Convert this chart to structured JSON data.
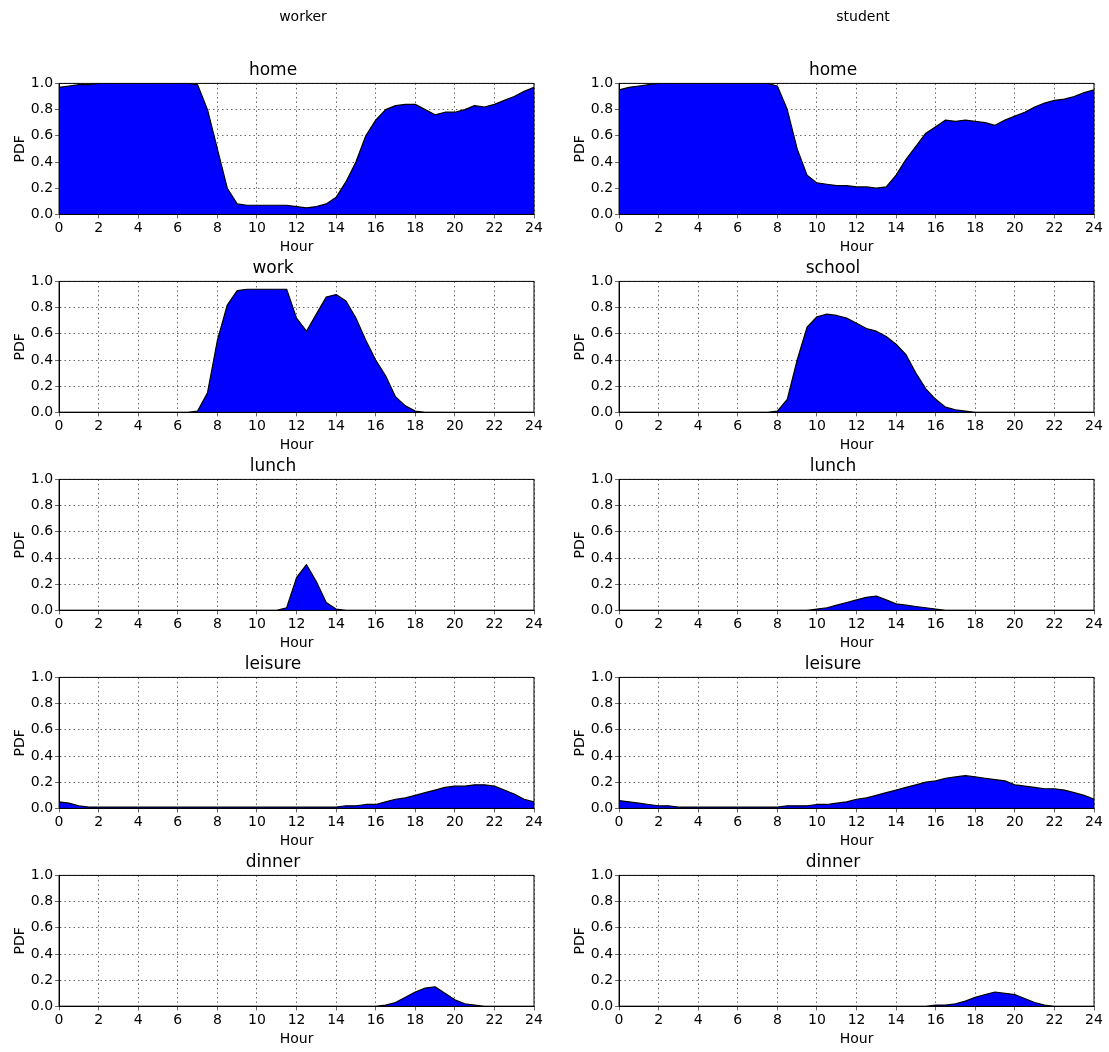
{
  "chart_data": [
    {
      "type": "area",
      "subtitle": "worker",
      "title": "home",
      "xlabel": "Hour",
      "ylabel": "PDF",
      "color": "#0000ff",
      "xlim": [
        0,
        24
      ],
      "ylim": [
        0,
        1
      ],
      "xticks": [
        0,
        2,
        4,
        6,
        8,
        10,
        12,
        14,
        16,
        18,
        20,
        22,
        24
      ],
      "yticks": [
        {
          "value": 0,
          "label": "0.0"
        },
        {
          "value": 0.2,
          "label": "0.2"
        },
        {
          "value": 0.4,
          "label": "0.4"
        },
        {
          "value": 0.6,
          "label": "0.6"
        },
        {
          "value": 0.8,
          "label": "0.8"
        },
        {
          "value": 1,
          "label": "1.0"
        }
      ],
      "grid": true,
      "x": [
        0,
        0.5,
        1,
        1.5,
        2,
        2.5,
        3,
        3.5,
        4,
        4.5,
        5,
        5.5,
        6,
        6.5,
        7,
        7.5,
        8,
        8.5,
        9,
        9.5,
        10,
        10.5,
        11,
        11.5,
        12,
        12.5,
        13,
        13.5,
        14,
        14.5,
        15,
        15.5,
        16,
        16.5,
        17,
        17.5,
        18,
        18.5,
        19,
        19.5,
        20,
        20.5,
        21,
        21.5,
        22,
        22.5,
        23,
        23.5,
        24
      ],
      "values": [
        0.97,
        0.98,
        0.99,
        0.99,
        1,
        1,
        1,
        1,
        1,
        1,
        1,
        1,
        1,
        1,
        0.99,
        0.8,
        0.5,
        0.2,
        0.08,
        0.07,
        0.07,
        0.07,
        0.07,
        0.07,
        0.06,
        0.05,
        0.06,
        0.08,
        0.13,
        0.25,
        0.4,
        0.6,
        0.72,
        0.8,
        0.83,
        0.84,
        0.84,
        0.8,
        0.76,
        0.78,
        0.78,
        0.8,
        0.83,
        0.82,
        0.84,
        0.87,
        0.9,
        0.94,
        0.97
      ]
    },
    {
      "type": "area",
      "subtitle": "student",
      "title": "home",
      "xlabel": "Hour",
      "ylabel": "PDF",
      "color": "#0000ff",
      "xlim": [
        0,
        24
      ],
      "ylim": [
        0,
        1
      ],
      "xticks": [
        0,
        2,
        4,
        6,
        8,
        10,
        12,
        14,
        16,
        18,
        20,
        22,
        24
      ],
      "yticks": [
        {
          "value": 0,
          "label": "0.0"
        },
        {
          "value": 0.2,
          "label": "0.2"
        },
        {
          "value": 0.4,
          "label": "0.4"
        },
        {
          "value": 0.6,
          "label": "0.6"
        },
        {
          "value": 0.8,
          "label": "0.8"
        },
        {
          "value": 1,
          "label": "1.0"
        }
      ],
      "grid": true,
      "x": [
        0,
        0.5,
        1,
        1.5,
        2,
        2.5,
        3,
        3.5,
        4,
        4.5,
        5,
        5.5,
        6,
        6.5,
        7,
        7.5,
        8,
        8.5,
        9,
        9.5,
        10,
        10.5,
        11,
        11.5,
        12,
        12.5,
        13,
        13.5,
        14,
        14.5,
        15,
        15.5,
        16,
        16.5,
        17,
        17.5,
        18,
        18.5,
        19,
        19.5,
        20,
        20.5,
        21,
        21.5,
        22,
        22.5,
        23,
        23.5,
        24
      ],
      "values": [
        0.95,
        0.97,
        0.98,
        0.99,
        1,
        1,
        1,
        1,
        1,
        1,
        1,
        1,
        1,
        1,
        1,
        1,
        0.98,
        0.8,
        0.5,
        0.3,
        0.24,
        0.23,
        0.22,
        0.22,
        0.21,
        0.21,
        0.2,
        0.21,
        0.3,
        0.42,
        0.52,
        0.62,
        0.67,
        0.72,
        0.71,
        0.72,
        0.71,
        0.7,
        0.68,
        0.72,
        0.75,
        0.78,
        0.82,
        0.85,
        0.87,
        0.88,
        0.9,
        0.93,
        0.95
      ]
    },
    {
      "type": "area",
      "title": "work",
      "xlabel": "Hour",
      "ylabel": "PDF",
      "color": "#0000ff",
      "xlim": [
        0,
        24
      ],
      "ylim": [
        0,
        1
      ],
      "xticks": [
        0,
        2,
        4,
        6,
        8,
        10,
        12,
        14,
        16,
        18,
        20,
        22,
        24
      ],
      "yticks": [
        {
          "value": 0,
          "label": "0.0"
        },
        {
          "value": 0.2,
          "label": "0.2"
        },
        {
          "value": 0.4,
          "label": "0.4"
        },
        {
          "value": 0.6,
          "label": "0.6"
        },
        {
          "value": 0.8,
          "label": "0.8"
        },
        {
          "value": 1,
          "label": "1.0"
        }
      ],
      "grid": true,
      "x": [
        0,
        0.5,
        1,
        1.5,
        2,
        2.5,
        3,
        3.5,
        4,
        4.5,
        5,
        5.5,
        6,
        6.5,
        7,
        7.5,
        8,
        8.5,
        9,
        9.5,
        10,
        10.5,
        11,
        11.5,
        12,
        12.5,
        13,
        13.5,
        14,
        14.5,
        15,
        15.5,
        16,
        16.5,
        17,
        17.5,
        18,
        18.5,
        19,
        19.5,
        20,
        20.5,
        21,
        21.5,
        22,
        22.5,
        23,
        23.5,
        24
      ],
      "values": [
        0,
        0,
        0,
        0,
        0,
        0,
        0,
        0,
        0,
        0,
        0,
        0,
        0,
        0,
        0.01,
        0.15,
        0.55,
        0.82,
        0.93,
        0.94,
        0.94,
        0.94,
        0.94,
        0.94,
        0.72,
        0.62,
        0.75,
        0.88,
        0.9,
        0.85,
        0.72,
        0.55,
        0.4,
        0.28,
        0.12,
        0.05,
        0.01,
        0,
        0,
        0,
        0,
        0,
        0,
        0,
        0,
        0,
        0,
        0,
        0
      ]
    },
    {
      "type": "area",
      "title": "school",
      "xlabel": "Hour",
      "ylabel": "PDF",
      "color": "#0000ff",
      "xlim": [
        0,
        24
      ],
      "ylim": [
        0,
        1
      ],
      "xticks": [
        0,
        2,
        4,
        6,
        8,
        10,
        12,
        14,
        16,
        18,
        20,
        22,
        24
      ],
      "yticks": [
        {
          "value": 0,
          "label": "0.0"
        },
        {
          "value": 0.2,
          "label": "0.2"
        },
        {
          "value": 0.4,
          "label": "0.4"
        },
        {
          "value": 0.6,
          "label": "0.6"
        },
        {
          "value": 0.8,
          "label": "0.8"
        },
        {
          "value": 1,
          "label": "1.0"
        }
      ],
      "grid": true,
      "x": [
        0,
        0.5,
        1,
        1.5,
        2,
        2.5,
        3,
        3.5,
        4,
        4.5,
        5,
        5.5,
        6,
        6.5,
        7,
        7.5,
        8,
        8.5,
        9,
        9.5,
        10,
        10.5,
        11,
        11.5,
        12,
        12.5,
        13,
        13.5,
        14,
        14.5,
        15,
        15.5,
        16,
        16.5,
        17,
        17.5,
        18,
        18.5,
        19,
        19.5,
        20,
        20.5,
        21,
        21.5,
        22,
        22.5,
        23,
        23.5,
        24
      ],
      "values": [
        0,
        0,
        0,
        0,
        0,
        0,
        0,
        0,
        0,
        0,
        0,
        0,
        0,
        0,
        0,
        0,
        0.01,
        0.1,
        0.4,
        0.65,
        0.73,
        0.75,
        0.74,
        0.72,
        0.68,
        0.64,
        0.62,
        0.58,
        0.52,
        0.44,
        0.3,
        0.18,
        0.1,
        0.04,
        0.02,
        0.01,
        0,
        0,
        0,
        0,
        0,
        0,
        0,
        0,
        0,
        0,
        0,
        0,
        0
      ]
    },
    {
      "type": "area",
      "title": "lunch",
      "xlabel": "Hour",
      "ylabel": "PDF",
      "color": "#0000ff",
      "xlim": [
        0,
        24
      ],
      "ylim": [
        0,
        1
      ],
      "xticks": [
        0,
        2,
        4,
        6,
        8,
        10,
        12,
        14,
        16,
        18,
        20,
        22,
        24
      ],
      "yticks": [
        {
          "value": 0,
          "label": "0.0"
        },
        {
          "value": 0.2,
          "label": "0.2"
        },
        {
          "value": 0.4,
          "label": "0.4"
        },
        {
          "value": 0.6,
          "label": "0.6"
        },
        {
          "value": 0.8,
          "label": "0.8"
        },
        {
          "value": 1,
          "label": "1.0"
        }
      ],
      "grid": true,
      "x": [
        0,
        0.5,
        1,
        1.5,
        2,
        2.5,
        3,
        3.5,
        4,
        4.5,
        5,
        5.5,
        6,
        6.5,
        7,
        7.5,
        8,
        8.5,
        9,
        9.5,
        10,
        10.5,
        11,
        11.5,
        12,
        12.5,
        13,
        13.5,
        14,
        14.5,
        15,
        15.5,
        16,
        16.5,
        17,
        17.5,
        18,
        18.5,
        19,
        19.5,
        20,
        20.5,
        21,
        21.5,
        22,
        22.5,
        23,
        23.5,
        24
      ],
      "values": [
        0,
        0,
        0,
        0,
        0,
        0,
        0,
        0,
        0,
        0,
        0,
        0,
        0,
        0,
        0,
        0,
        0,
        0,
        0,
        0,
        0,
        0,
        0,
        0.02,
        0.25,
        0.35,
        0.22,
        0.06,
        0.01,
        0,
        0,
        0,
        0,
        0,
        0,
        0,
        0,
        0,
        0,
        0,
        0,
        0,
        0,
        0,
        0,
        0,
        0,
        0,
        0
      ]
    },
    {
      "type": "area",
      "title": "lunch",
      "xlabel": "Hour",
      "ylabel": "PDF",
      "color": "#0000ff",
      "xlim": [
        0,
        24
      ],
      "ylim": [
        0,
        1
      ],
      "xticks": [
        0,
        2,
        4,
        6,
        8,
        10,
        12,
        14,
        16,
        18,
        20,
        22,
        24
      ],
      "yticks": [
        {
          "value": 0,
          "label": "0.0"
        },
        {
          "value": 0.2,
          "label": "0.2"
        },
        {
          "value": 0.4,
          "label": "0.4"
        },
        {
          "value": 0.6,
          "label": "0.6"
        },
        {
          "value": 0.8,
          "label": "0.8"
        },
        {
          "value": 1,
          "label": "1.0"
        }
      ],
      "grid": true,
      "x": [
        0,
        0.5,
        1,
        1.5,
        2,
        2.5,
        3,
        3.5,
        4,
        4.5,
        5,
        5.5,
        6,
        6.5,
        7,
        7.5,
        8,
        8.5,
        9,
        9.5,
        10,
        10.5,
        11,
        11.5,
        12,
        12.5,
        13,
        13.5,
        14,
        14.5,
        15,
        15.5,
        16,
        16.5,
        17,
        17.5,
        18,
        18.5,
        19,
        19.5,
        20,
        20.5,
        21,
        21.5,
        22,
        22.5,
        23,
        23.5,
        24
      ],
      "values": [
        0,
        0,
        0,
        0,
        0,
        0,
        0,
        0,
        0,
        0,
        0,
        0,
        0,
        0,
        0,
        0,
        0,
        0,
        0,
        0,
        0.01,
        0.02,
        0.04,
        0.06,
        0.08,
        0.1,
        0.11,
        0.08,
        0.05,
        0.04,
        0.03,
        0.02,
        0.01,
        0,
        0,
        0,
        0,
        0,
        0,
        0,
        0,
        0,
        0,
        0,
        0,
        0,
        0,
        0,
        0
      ]
    },
    {
      "type": "area",
      "title": "leisure",
      "xlabel": "Hour",
      "ylabel": "PDF",
      "color": "#0000ff",
      "xlim": [
        0,
        24
      ],
      "ylim": [
        0,
        1
      ],
      "xticks": [
        0,
        2,
        4,
        6,
        8,
        10,
        12,
        14,
        16,
        18,
        20,
        22,
        24
      ],
      "yticks": [
        {
          "value": 0,
          "label": "0.0"
        },
        {
          "value": 0.2,
          "label": "0.2"
        },
        {
          "value": 0.4,
          "label": "0.4"
        },
        {
          "value": 0.6,
          "label": "0.6"
        },
        {
          "value": 0.8,
          "label": "0.8"
        },
        {
          "value": 1,
          "label": "1.0"
        }
      ],
      "grid": true,
      "x": [
        0,
        0.5,
        1,
        1.5,
        2,
        2.5,
        3,
        3.5,
        4,
        4.5,
        5,
        5.5,
        6,
        6.5,
        7,
        7.5,
        8,
        8.5,
        9,
        9.5,
        10,
        10.5,
        11,
        11.5,
        12,
        12.5,
        13,
        13.5,
        14,
        14.5,
        15,
        15.5,
        16,
        16.5,
        17,
        17.5,
        18,
        18.5,
        19,
        19.5,
        20,
        20.5,
        21,
        21.5,
        22,
        22.5,
        23,
        23.5,
        24
      ],
      "values": [
        0.05,
        0.04,
        0.02,
        0.01,
        0.01,
        0.01,
        0.01,
        0.01,
        0.01,
        0.01,
        0.01,
        0.01,
        0.01,
        0.01,
        0.01,
        0.01,
        0.01,
        0.01,
        0.01,
        0.01,
        0.01,
        0.01,
        0.01,
        0.01,
        0.01,
        0.01,
        0.01,
        0.01,
        0.01,
        0.02,
        0.02,
        0.03,
        0.03,
        0.05,
        0.07,
        0.08,
        0.1,
        0.12,
        0.14,
        0.16,
        0.17,
        0.17,
        0.18,
        0.18,
        0.17,
        0.14,
        0.11,
        0.07,
        0.05
      ]
    },
    {
      "type": "area",
      "title": "leisure",
      "xlabel": "Hour",
      "ylabel": "PDF",
      "color": "#0000ff",
      "xlim": [
        0,
        24
      ],
      "ylim": [
        0,
        1
      ],
      "xticks": [
        0,
        2,
        4,
        6,
        8,
        10,
        12,
        14,
        16,
        18,
        20,
        22,
        24
      ],
      "yticks": [
        {
          "value": 0,
          "label": "0.0"
        },
        {
          "value": 0.2,
          "label": "0.2"
        },
        {
          "value": 0.4,
          "label": "0.4"
        },
        {
          "value": 0.6,
          "label": "0.6"
        },
        {
          "value": 0.8,
          "label": "0.8"
        },
        {
          "value": 1,
          "label": "1.0"
        }
      ],
      "grid": true,
      "x": [
        0,
        0.5,
        1,
        1.5,
        2,
        2.5,
        3,
        3.5,
        4,
        4.5,
        5,
        5.5,
        6,
        6.5,
        7,
        7.5,
        8,
        8.5,
        9,
        9.5,
        10,
        10.5,
        11,
        11.5,
        12,
        12.5,
        13,
        13.5,
        14,
        14.5,
        15,
        15.5,
        16,
        16.5,
        17,
        17.5,
        18,
        18.5,
        19,
        19.5,
        20,
        20.5,
        21,
        21.5,
        22,
        22.5,
        23,
        23.5,
        24
      ],
      "values": [
        0.06,
        0.05,
        0.04,
        0.03,
        0.02,
        0.02,
        0.01,
        0.01,
        0.01,
        0.01,
        0.01,
        0.01,
        0.01,
        0.01,
        0.01,
        0.01,
        0.01,
        0.02,
        0.02,
        0.02,
        0.03,
        0.03,
        0.04,
        0.05,
        0.07,
        0.08,
        0.1,
        0.12,
        0.14,
        0.16,
        0.18,
        0.2,
        0.21,
        0.23,
        0.24,
        0.25,
        0.24,
        0.23,
        0.22,
        0.21,
        0.18,
        0.17,
        0.16,
        0.15,
        0.15,
        0.14,
        0.12,
        0.1,
        0.07
      ]
    },
    {
      "type": "area",
      "title": "dinner",
      "xlabel": "Hour",
      "ylabel": "PDF",
      "color": "#0000ff",
      "xlim": [
        0,
        24
      ],
      "ylim": [
        0,
        1
      ],
      "xticks": [
        0,
        2,
        4,
        6,
        8,
        10,
        12,
        14,
        16,
        18,
        20,
        22,
        24
      ],
      "yticks": [
        {
          "value": 0,
          "label": "0.0"
        },
        {
          "value": 0.2,
          "label": "0.2"
        },
        {
          "value": 0.4,
          "label": "0.4"
        },
        {
          "value": 0.6,
          "label": "0.6"
        },
        {
          "value": 0.8,
          "label": "0.8"
        },
        {
          "value": 1,
          "label": "1.0"
        }
      ],
      "grid": true,
      "x": [
        0,
        0.5,
        1,
        1.5,
        2,
        2.5,
        3,
        3.5,
        4,
        4.5,
        5,
        5.5,
        6,
        6.5,
        7,
        7.5,
        8,
        8.5,
        9,
        9.5,
        10,
        10.5,
        11,
        11.5,
        12,
        12.5,
        13,
        13.5,
        14,
        14.5,
        15,
        15.5,
        16,
        16.5,
        17,
        17.5,
        18,
        18.5,
        19,
        19.5,
        20,
        20.5,
        21,
        21.5,
        22,
        22.5,
        23,
        23.5,
        24
      ],
      "values": [
        0,
        0,
        0,
        0,
        0,
        0,
        0,
        0,
        0,
        0,
        0,
        0,
        0,
        0,
        0,
        0,
        0,
        0,
        0,
        0,
        0,
        0,
        0,
        0,
        0,
        0,
        0,
        0,
        0,
        0,
        0,
        0,
        0,
        0.01,
        0.03,
        0.07,
        0.11,
        0.14,
        0.15,
        0.1,
        0.05,
        0.02,
        0.01,
        0,
        0,
        0,
        0,
        0,
        0
      ]
    },
    {
      "type": "area",
      "title": "dinner",
      "xlabel": "Hour",
      "ylabel": "PDF",
      "color": "#0000ff",
      "xlim": [
        0,
        24
      ],
      "ylim": [
        0,
        1
      ],
      "xticks": [
        0,
        2,
        4,
        6,
        8,
        10,
        12,
        14,
        16,
        18,
        20,
        22,
        24
      ],
      "yticks": [
        {
          "value": 0,
          "label": "0.0"
        },
        {
          "value": 0.2,
          "label": "0.2"
        },
        {
          "value": 0.4,
          "label": "0.4"
        },
        {
          "value": 0.6,
          "label": "0.6"
        },
        {
          "value": 0.8,
          "label": "0.8"
        },
        {
          "value": 1,
          "label": "1.0"
        }
      ],
      "grid": true,
      "x": [
        0,
        0.5,
        1,
        1.5,
        2,
        2.5,
        3,
        3.5,
        4,
        4.5,
        5,
        5.5,
        6,
        6.5,
        7,
        7.5,
        8,
        8.5,
        9,
        9.5,
        10,
        10.5,
        11,
        11.5,
        12,
        12.5,
        13,
        13.5,
        14,
        14.5,
        15,
        15.5,
        16,
        16.5,
        17,
        17.5,
        18,
        18.5,
        19,
        19.5,
        20,
        20.5,
        21,
        21.5,
        22,
        22.5,
        23,
        23.5,
        24
      ],
      "values": [
        0,
        0,
        0,
        0,
        0,
        0,
        0,
        0,
        0,
        0,
        0,
        0,
        0,
        0,
        0,
        0,
        0,
        0,
        0,
        0,
        0,
        0,
        0,
        0,
        0,
        0,
        0,
        0,
        0,
        0,
        0,
        0,
        0.01,
        0.01,
        0.02,
        0.04,
        0.07,
        0.09,
        0.11,
        0.1,
        0.09,
        0.06,
        0.03,
        0.01,
        0,
        0,
        0,
        0,
        0
      ]
    }
  ]
}
